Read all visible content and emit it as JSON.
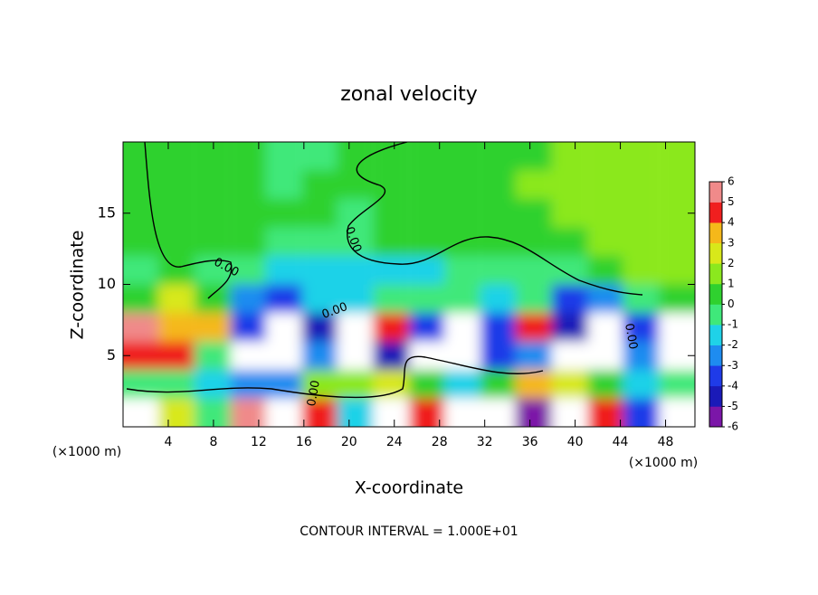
{
  "chart_data": {
    "type": "contourf",
    "title": "zonal velocity",
    "x_label": "X-coordinate",
    "y_label": "Z-coordinate",
    "x_unit_left": "(×1000 m)",
    "x_unit_right": "(×1000 m)",
    "footer": "CONTOUR INTERVAL = 1.000E+01",
    "contour_labels": [
      "0.00",
      "0.00",
      "0.00",
      "0.00",
      "0.00"
    ],
    "xlim": [
      0,
      50.6
    ],
    "ylim": [
      0,
      20
    ],
    "xticks": [
      4,
      8,
      12,
      16,
      20,
      24,
      28,
      32,
      36,
      40,
      44,
      48
    ],
    "yticks": [
      5,
      10,
      15
    ],
    "x": [
      1.6,
      4.7,
      7.9,
      11.1,
      14.2,
      17.4,
      20.5,
      23.7,
      26.9,
      30.0,
      33.2,
      36.3,
      39.5,
      42.7,
      45.8,
      49.0
    ],
    "y": [
      19,
      17,
      15,
      13,
      11,
      9,
      7,
      5,
      3,
      1
    ],
    "z": [
      [
        0.3,
        0.3,
        0.3,
        0.2,
        -1,
        -0.5,
        0,
        0,
        0,
        0,
        0.5,
        0.5,
        1,
        1,
        1,
        1
      ],
      [
        0,
        0,
        0,
        0,
        -0.5,
        0,
        0,
        0,
        0.5,
        0.5,
        0.5,
        1,
        1,
        1.3,
        1.3,
        1
      ],
      [
        0,
        0,
        0,
        0,
        0,
        0,
        -0.3,
        0,
        0.5,
        0.5,
        0.5,
        0.5,
        1,
        1.3,
        1.3,
        1
      ],
      [
        0,
        0,
        0,
        0,
        -0.5,
        -1,
        -0.5,
        0,
        0,
        0,
        0,
        0,
        0.5,
        1,
        1.5,
        1
      ],
      [
        -0.5,
        0,
        -0.5,
        -1,
        -1.5,
        -2,
        -2,
        -1.5,
        -1.5,
        -1,
        -1,
        -1,
        -0.5,
        0,
        1,
        1
      ],
      [
        0,
        2,
        0,
        -3,
        -4,
        -2,
        -2,
        -1,
        -1,
        -1,
        -2,
        -1,
        -4,
        -3,
        -1,
        0
      ],
      [
        6,
        3,
        3,
        -4,
        8,
        -5,
        8,
        4,
        -4,
        7,
        -4,
        4,
        -5,
        7,
        -4,
        8
      ],
      [
        4,
        4,
        -1,
        7,
        7,
        -3,
        8,
        -5,
        8,
        8,
        -4,
        -3,
        8,
        8,
        -3,
        7
      ],
      [
        -1,
        -1,
        -2,
        -3,
        -3,
        1,
        1,
        2,
        0,
        -2,
        0,
        3,
        2,
        0,
        -2,
        -1
      ],
      [
        7,
        2,
        -1,
        5,
        8,
        4,
        -2,
        7,
        4,
        8,
        8,
        -6,
        8,
        4,
        -4,
        8
      ]
    ],
    "levels": [
      -6,
      -5,
      -4,
      -3,
      -2,
      -1,
      0,
      1,
      2,
      3,
      4,
      5,
      6
    ],
    "colors": [
      "#7b16a8",
      "#1a1ab8",
      "#1f3be8",
      "#1e8cf0",
      "#1fd2e8",
      "#3fe87a",
      "#2fd12f",
      "#8be81e",
      "#d8e81a",
      "#f5b81a",
      "#f01f1f",
      "#f08a8a"
    ],
    "above_color": "#ffffff"
  }
}
